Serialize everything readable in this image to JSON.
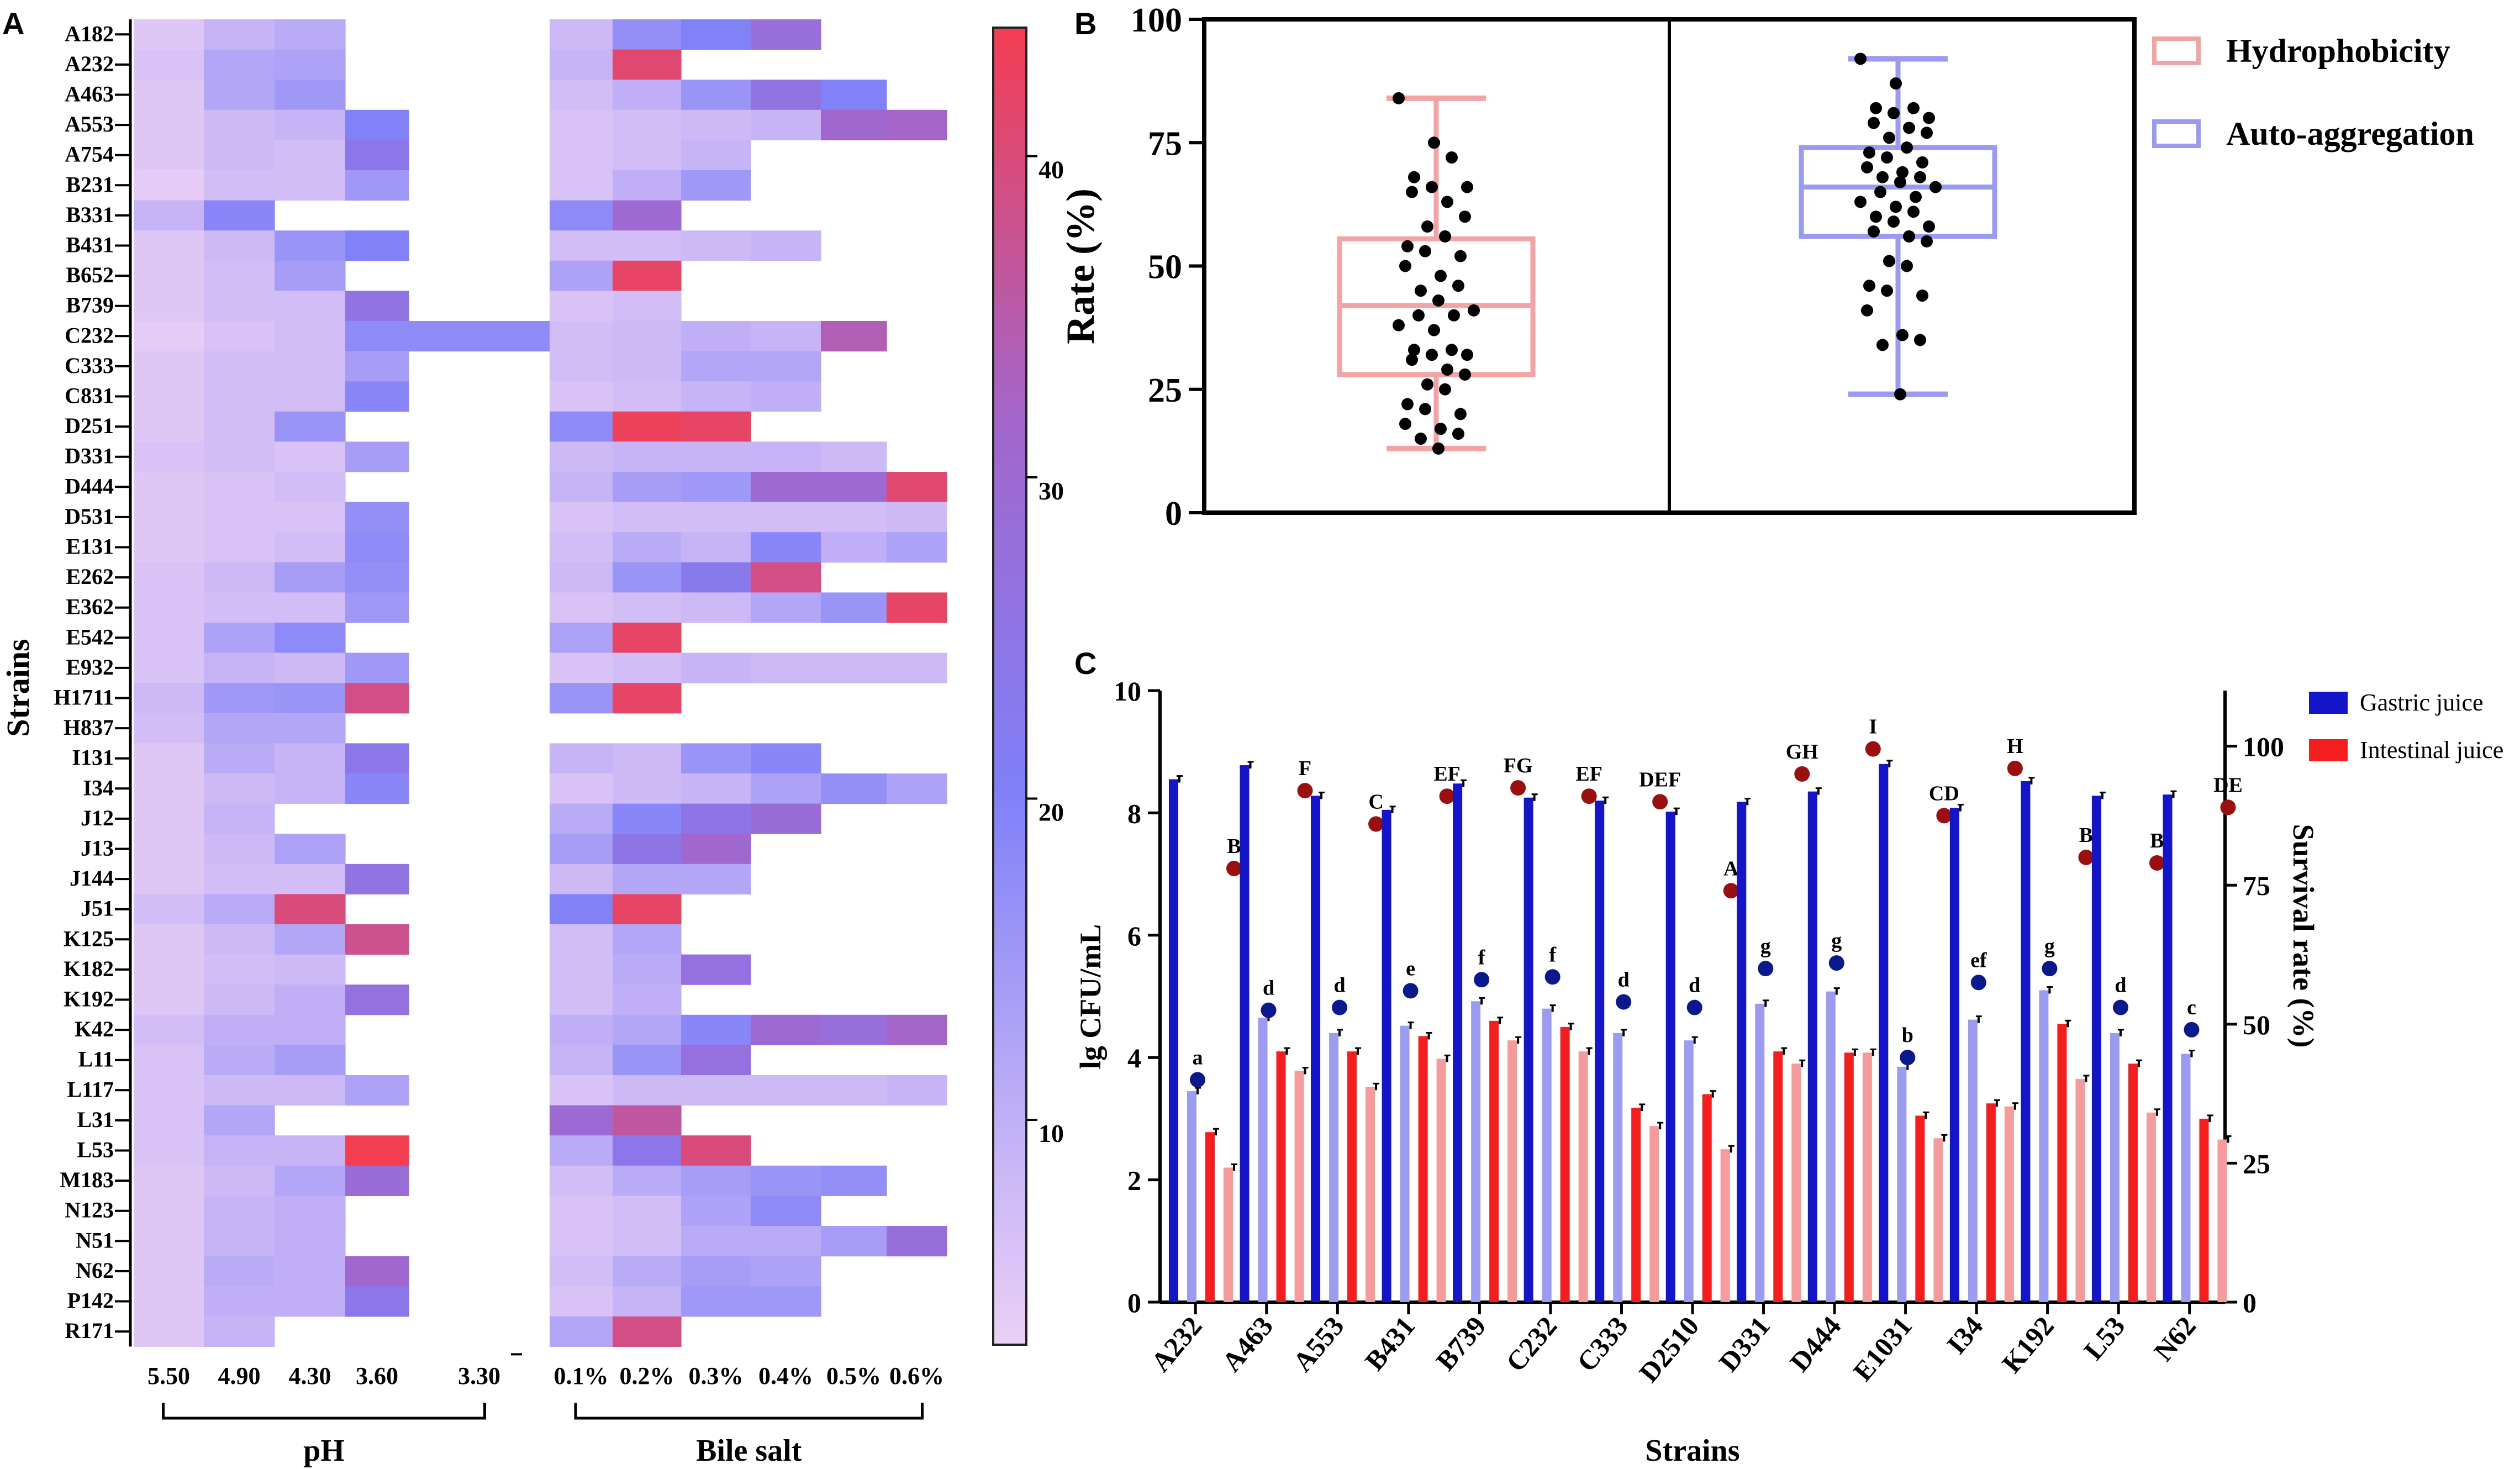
{
  "panel_labels": {
    "a": "A",
    "b": "B",
    "c": "C"
  },
  "colors": {
    "heat_low": "#ebd0f5",
    "heat_mid": "#8080f8",
    "heat_high": "#f43e52",
    "hydro": "#f2a3a3",
    "auto": "#9a9af0",
    "gastric": "#1414c8",
    "intestinal": "#f41e1e",
    "gastric_light": "#9b9bf2",
    "intestinal_light": "#f59b9b",
    "point": "#000000",
    "dot_blue": "#0a1a8c",
    "dot_red": "#9a0f0f"
  },
  "chart_data": [
    {
      "type": "heatmap",
      "panel": "A",
      "ylabel": "Strains",
      "rows": [
        "A182",
        "A232",
        "A463",
        "A553",
        "A754",
        "B231",
        "B331",
        "B431",
        "B652",
        "B739",
        "C232",
        "C333",
        "C831",
        "D251",
        "D331",
        "D444",
        "D531",
        "E131",
        "E262",
        "E362",
        "E542",
        "E932",
        "H1711",
        "H837",
        "I131",
        "I34",
        "J12",
        "J13",
        "J144",
        "J51",
        "K125",
        "K182",
        "K192",
        "K42",
        "L11",
        "L117",
        "L31",
        "L53",
        "M183",
        "N123",
        "N51",
        "N62",
        "P142",
        "R171"
      ],
      "columns": [
        "5.50",
        "4.90",
        "4.30",
        "3.60",
        "3.30",
        "0.1%",
        "0.2%",
        "0.3%",
        "0.4%",
        "0.5%",
        "0.6%"
      ],
      "groups": [
        {
          "label": "pH",
          "cols": [
            0,
            4
          ]
        },
        {
          "label": "Bile salt",
          "cols": [
            5,
            10
          ]
        }
      ],
      "colorbar": {
        "min": 3,
        "max": 44,
        "ticks": [
          10,
          20,
          30,
          40
        ]
      },
      "values": [
        [
          5,
          9,
          11,
          null,
          null,
          8,
          17,
          20,
          28,
          null,
          null
        ],
        [
          6,
          12,
          13,
          null,
          null,
          9,
          41,
          null,
          null,
          null,
          null
        ],
        [
          5,
          12,
          15,
          null,
          null,
          7,
          10,
          16,
          26,
          20,
          null
        ],
        [
          5,
          8,
          9,
          20,
          null,
          6,
          7,
          8,
          9,
          31,
          32
        ],
        [
          5,
          8,
          7,
          24,
          null,
          6,
          7,
          9,
          null,
          null,
          null
        ],
        [
          4,
          7,
          7,
          15,
          null,
          6,
          10,
          15,
          null,
          null,
          null
        ],
        [
          9,
          19,
          null,
          null,
          null,
          18,
          30,
          null,
          null,
          null,
          null
        ],
        [
          5,
          8,
          16,
          20,
          null,
          7,
          7,
          8,
          9,
          null,
          null
        ],
        [
          5,
          7,
          14,
          null,
          null,
          13,
          42,
          null,
          null,
          null,
          null
        ],
        [
          5,
          7,
          7,
          26,
          null,
          6,
          7,
          null,
          null,
          null,
          null
        ],
        [
          4,
          6,
          7,
          18,
          18,
          7,
          8,
          10,
          9,
          34,
          null
        ],
        [
          5,
          7,
          7,
          14,
          null,
          7,
          8,
          12,
          12,
          null,
          null
        ],
        [
          5,
          7,
          7,
          19,
          null,
          6,
          7,
          9,
          10,
          null,
          null
        ],
        [
          5,
          7,
          16,
          null,
          null,
          18,
          43,
          42,
          null,
          null,
          null
        ],
        [
          6,
          7,
          6,
          14,
          null,
          8,
          9,
          9,
          9,
          8,
          null
        ],
        [
          5,
          6,
          7,
          null,
          null,
          9,
          14,
          15,
          30,
          30,
          41
        ],
        [
          5,
          6,
          6,
          17,
          null,
          6,
          7,
          7,
          7,
          7,
          8
        ],
        [
          5,
          6,
          7,
          18,
          null,
          7,
          11,
          9,
          19,
          10,
          13
        ],
        [
          6,
          8,
          14,
          17,
          null,
          8,
          16,
          23,
          39,
          null,
          null
        ],
        [
          6,
          7,
          7,
          15,
          null,
          6,
          7,
          8,
          12,
          16,
          42
        ],
        [
          6,
          13,
          18,
          null,
          null,
          13,
          42,
          null,
          null,
          null,
          null
        ],
        [
          6,
          9,
          8,
          15,
          null,
          6,
          7,
          9,
          8,
          8,
          8
        ],
        [
          8,
          15,
          16,
          39,
          null,
          16,
          42,
          null,
          null,
          null,
          null
        ],
        [
          7,
          12,
          12,
          null,
          null,
          null,
          null,
          null,
          null,
          null,
          null
        ],
        [
          5,
          11,
          9,
          24,
          null,
          9,
          8,
          16,
          19,
          null,
          null
        ],
        [
          5,
          8,
          9,
          19,
          null,
          6,
          8,
          9,
          13,
          17,
          13
        ],
        [
          5,
          9,
          null,
          null,
          null,
          11,
          19,
          25,
          29,
          null,
          null
        ],
        [
          5,
          8,
          13,
          null,
          null,
          14,
          25,
          31,
          null,
          null,
          null
        ],
        [
          5,
          7,
          7,
          26,
          null,
          8,
          12,
          12,
          null,
          null,
          null
        ],
        [
          7,
          11,
          40,
          null,
          null,
          20,
          42,
          null,
          null,
          null,
          null
        ],
        [
          5,
          8,
          12,
          38,
          null,
          7,
          12,
          null,
          null,
          null,
          null
        ],
        [
          5,
          7,
          8,
          null,
          null,
          7,
          11,
          27,
          null,
          null,
          null
        ],
        [
          5,
          8,
          10,
          27,
          null,
          7,
          10,
          null,
          null,
          null,
          null
        ],
        [
          7,
          10,
          10,
          null,
          null,
          10,
          12,
          19,
          30,
          28,
          32
        ],
        [
          6,
          11,
          14,
          null,
          null,
          9,
          16,
          27,
          null,
          null,
          null
        ],
        [
          6,
          8,
          8,
          13,
          null,
          6,
          8,
          8,
          8,
          8,
          9
        ],
        [
          6,
          12,
          null,
          null,
          null,
          30,
          36,
          null,
          null,
          null,
          null
        ],
        [
          6,
          9,
          9,
          44,
          null,
          11,
          24,
          40,
          null,
          null,
          null
        ],
        [
          5,
          8,
          12,
          29,
          null,
          7,
          11,
          14,
          16,
          17,
          null
        ],
        [
          5,
          9,
          10,
          null,
          null,
          6,
          7,
          13,
          18,
          null,
          null
        ],
        [
          5,
          9,
          10,
          null,
          null,
          6,
          7,
          11,
          11,
          14,
          28
        ],
        [
          5,
          11,
          10,
          31,
          null,
          7,
          11,
          14,
          13,
          null,
          null
        ],
        [
          5,
          10,
          10,
          24,
          null,
          6,
          9,
          15,
          15,
          null,
          null
        ],
        [
          5,
          9,
          null,
          null,
          null,
          12,
          39,
          null,
          null,
          null,
          null
        ]
      ]
    },
    {
      "type": "box",
      "panel": "B",
      "ylabel": "Rate (%)",
      "ylim": [
        0,
        100
      ],
      "yticks": [
        0,
        25,
        50,
        75,
        100
      ],
      "legend": [
        "Hydrophobicity",
        "Auto-aggregation"
      ],
      "series": [
        {
          "name": "Hydrophobicity",
          "min": 13,
          "q1": 28,
          "median": 42,
          "q3": 55.5,
          "max": 84,
          "points": [
            84,
            75,
            72,
            68,
            66,
            66,
            65,
            63,
            60,
            58,
            56,
            54,
            53,
            52,
            50,
            48,
            46,
            45,
            43,
            41,
            40,
            40,
            38,
            37,
            33,
            33,
            32,
            32,
            31,
            29,
            28,
            26,
            25,
            22,
            21,
            20,
            18,
            17,
            16,
            15,
            13
          ]
        },
        {
          "name": "Auto-aggregation",
          "min": 24,
          "q1": 56,
          "median": 66,
          "q3": 74,
          "max": 92,
          "points": [
            92,
            87,
            82,
            82,
            81,
            80,
            79,
            78,
            77,
            76,
            74,
            73,
            72,
            71,
            70,
            69,
            68,
            68,
            67,
            66,
            65,
            64,
            63,
            62,
            61,
            60,
            59,
            58,
            57,
            56,
            55,
            51,
            50,
            46,
            45,
            44,
            41,
            36,
            35,
            34,
            24
          ]
        }
      ]
    },
    {
      "type": "bar",
      "panel": "C",
      "xlabel": "Strains",
      "ylabel": "lg CFU/mL",
      "y2label": "Survival rate (%)",
      "ylim": [
        0,
        10
      ],
      "yticks": [
        0,
        2,
        4,
        6,
        8,
        10
      ],
      "y2lim": [
        0,
        110
      ],
      "y2ticks": [
        0,
        25,
        50,
        75,
        100
      ],
      "categories": [
        "A232",
        "A463",
        "A553",
        "B431",
        "B739",
        "C232",
        "C333",
        "D2510",
        "D331",
        "D444",
        "E1031",
        "I34",
        "K192",
        "L53",
        "N62"
      ],
      "legend": [
        "Gastric juice",
        "Intestinal juice"
      ],
      "series": [
        {
          "name": "Gastric juice",
          "before": [
            8.55,
            8.78,
            8.28,
            8.05,
            8.48,
            8.25,
            8.2,
            8.02,
            8.18,
            8.35,
            8.8,
            8.08,
            8.52,
            8.28,
            8.3
          ],
          "after": [
            3.45,
            4.65,
            4.4,
            4.52,
            4.92,
            4.8,
            4.4,
            4.28,
            4.88,
            5.08,
            3.85,
            4.62,
            5.1,
            4.4,
            4.06
          ]
        },
        {
          "name": "Intestinal juice",
          "before": [
            2.78,
            4.1,
            4.1,
            4.35,
            4.6,
            4.5,
            3.18,
            3.4,
            4.1,
            4.08,
            3.05,
            3.25,
            4.55,
            3.9,
            3.0
          ],
          "after": [
            2.2,
            3.78,
            3.52,
            3.98,
            4.28,
            4.1,
            2.88,
            2.5,
            3.9,
            4.08,
            2.68,
            3.2,
            3.65,
            3.1,
            2.66
          ]
        }
      ],
      "survival_gastric": [
        40,
        52.5,
        53,
        56,
        58,
        58.5,
        54,
        53,
        60,
        61,
        44,
        57.5,
        60,
        53,
        49
      ],
      "survival_intestinal": [
        78,
        92,
        86,
        91,
        92.5,
        91,
        90,
        74,
        95,
        99.5,
        87.5,
        96,
        80,
        79,
        89
      ],
      "letters_gastric": [
        "a",
        "d",
        "d",
        "e",
        "f",
        "f",
        "d",
        "d",
        "g",
        "g",
        "b",
        "ef",
        "g",
        "d",
        "c"
      ],
      "letters_intestinal": [
        "B",
        "F",
        "C",
        "EF",
        "FG",
        "EF",
        "DEF",
        "A",
        "GH",
        "I",
        "CD",
        "H",
        "B",
        "B",
        "DE"
      ]
    }
  ]
}
